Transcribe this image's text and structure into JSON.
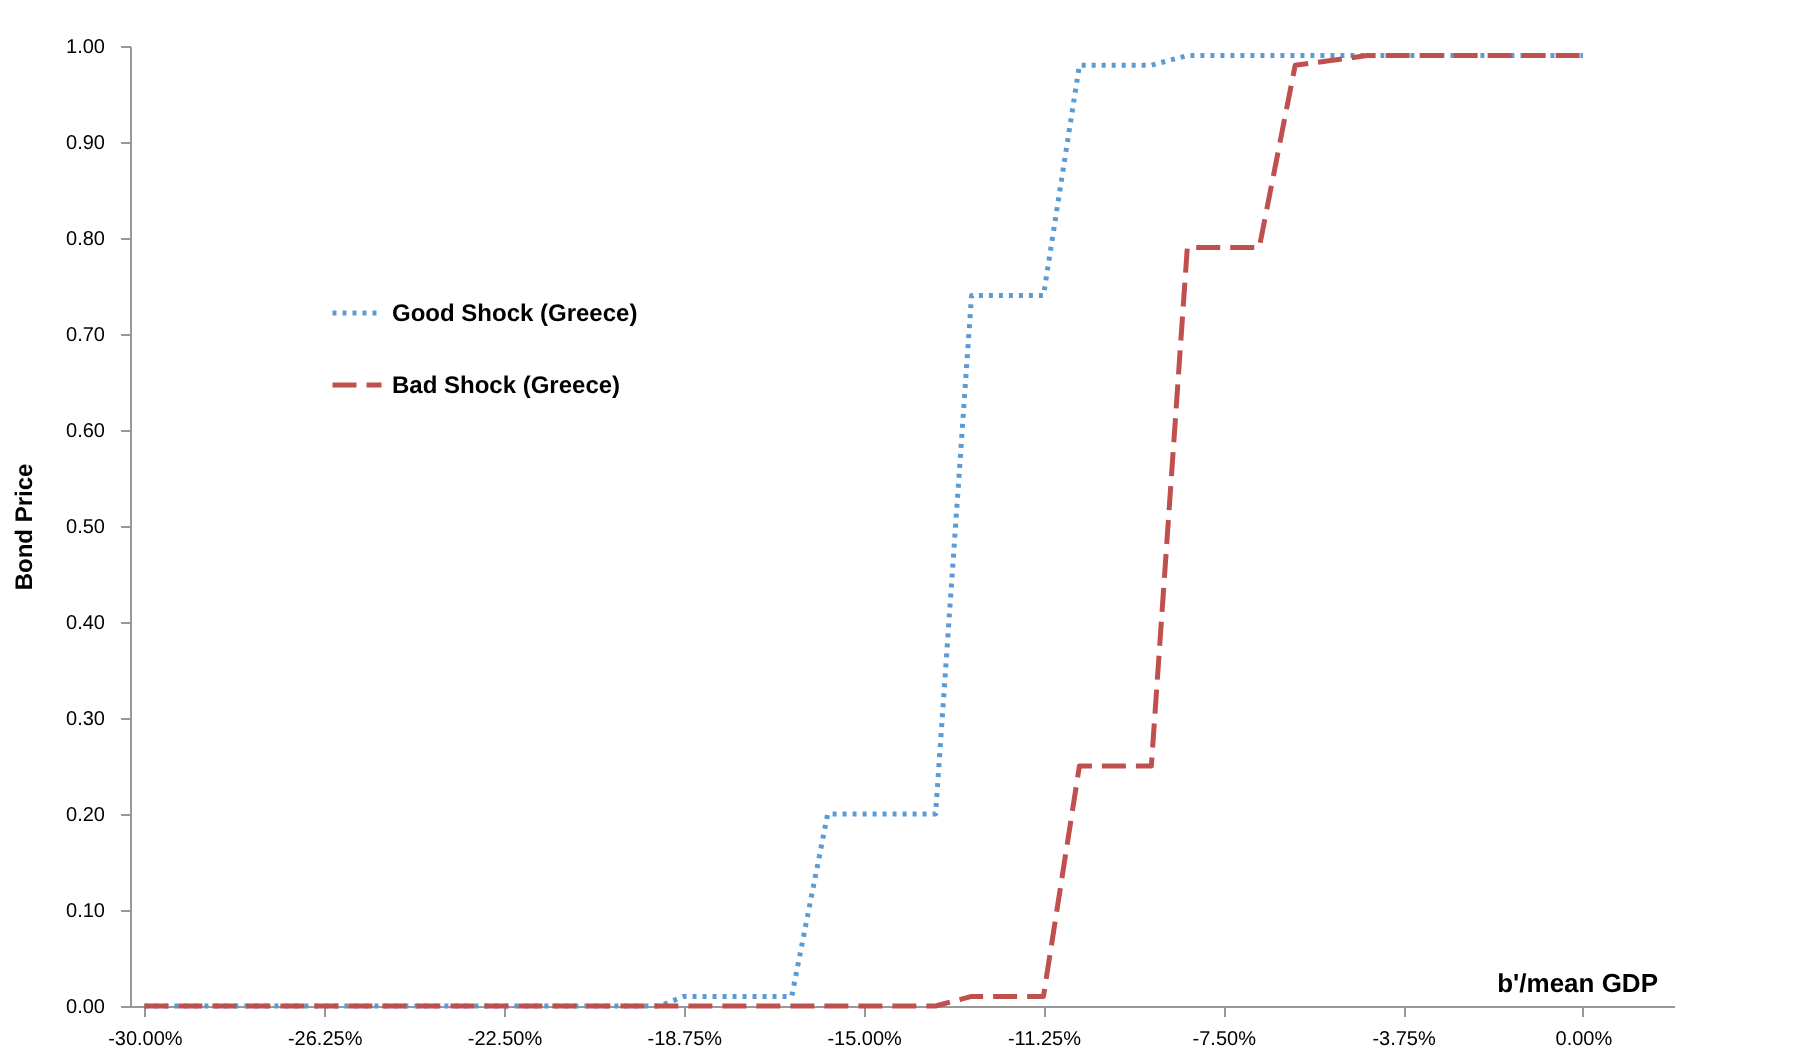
{
  "chart_data": {
    "type": "line",
    "xlabel": "b'/mean GDP",
    "ylabel": "Bond Price",
    "xlim": [
      -30.3,
      1.9
    ],
    "ylim": [
      0,
      1
    ],
    "xticks": [
      {
        "value": -30,
        "label": "-30.00%"
      },
      {
        "value": -26.25,
        "label": "-26.25%"
      },
      {
        "value": -22.5,
        "label": "-22.50%"
      },
      {
        "value": -18.75,
        "label": "-18.75%"
      },
      {
        "value": -15,
        "label": "-15.00%"
      },
      {
        "value": -11.25,
        "label": "-11.25%"
      },
      {
        "value": -7.5,
        "label": "-7.50%"
      },
      {
        "value": -3.75,
        "label": "-3.75%"
      },
      {
        "value": 0,
        "label": "0.00%"
      }
    ],
    "yticks": [
      {
        "value": 0,
        "label": "0.00"
      },
      {
        "value": 0.1,
        "label": "0.10"
      },
      {
        "value": 0.2,
        "label": "0.20"
      },
      {
        "value": 0.3,
        "label": "0.30"
      },
      {
        "value": 0.4,
        "label": "0.40"
      },
      {
        "value": 0.5,
        "label": "0.50"
      },
      {
        "value": 0.6,
        "label": "0.60"
      },
      {
        "value": 0.7,
        "label": "0.70"
      },
      {
        "value": 0.8,
        "label": "0.80"
      },
      {
        "value": 0.9,
        "label": "0.90"
      },
      {
        "value": 1,
        "label": "1.00"
      }
    ],
    "grid": false,
    "legend": "top left",
    "marker": "none",
    "series": [
      {
        "name": "Good Shock (Greece)",
        "color": "#5b9bd5",
        "line_style": "dotted",
        "x": [
          -30,
          -19.25,
          -18.75,
          -16.5,
          -15.75,
          -13.5,
          -12.75,
          -11.25,
          -10.5,
          -9.0,
          -8.25,
          0
        ],
        "values": [
          0,
          0,
          0.01,
          0.01,
          0.2,
          0.2,
          0.74,
          0.74,
          0.98,
          0.98,
          0.99,
          0.99
        ]
      },
      {
        "name": "Bad Shock (Greece)",
        "color": "#c0504d",
        "line_style": "dashed",
        "x": [
          -30,
          -13.5,
          -12.75,
          -11.25,
          -10.5,
          -9.0,
          -8.25,
          -6.75,
          -6.0,
          -4.5,
          0
        ],
        "values": [
          0,
          0,
          0.01,
          0.01,
          0.25,
          0.25,
          0.79,
          0.79,
          0.98,
          0.99,
          0.99
        ]
      }
    ]
  }
}
